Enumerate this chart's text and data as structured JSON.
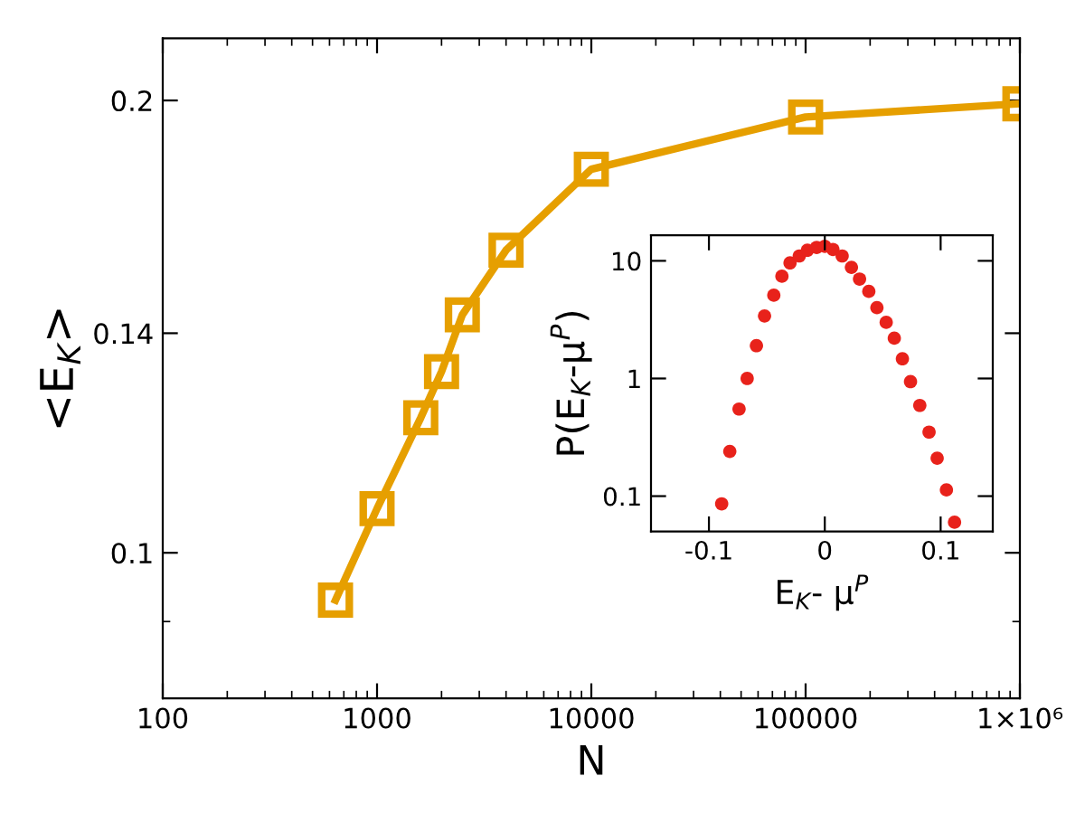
{
  "chart_data": [
    {
      "type": "line",
      "xlabel": "N",
      "ylabel": "<E$_{K}$>",
      "log": "xy",
      "marker": "square",
      "line_style": "solid",
      "grid": false,
      "legend": false,
      "x": [
        640,
        1000,
        1600,
        2000,
        2500,
        4000,
        10000,
        100000,
        1000000
      ],
      "series": [
        {
          "color": "#e69f00",
          "values": [
            0.093,
            0.107,
            0.123,
            0.132,
            0.144,
            0.159,
            0.18,
            0.195,
            0.199
          ]
        }
      ],
      "xlim": [
        100,
        1000000
      ],
      "xticks": [
        100,
        1000,
        10000,
        100000,
        {
          "value": 1000000,
          "label": "1×10⁶"
        }
      ],
      "ylim": [
        0.08,
        0.22
      ],
      "yticks": [
        0.1,
        0.14,
        0.2
      ]
    },
    {
      "type": "scatter",
      "xlabel": "E$_{K}$- μ$^{P}$",
      "ylabel": "P(E$_{K}$-μ$^{P}$)",
      "log": "y",
      "marker": "circle",
      "grid": false,
      "legend": false,
      "x": [
        -0.089,
        -0.082,
        -0.074,
        -0.067,
        -0.059,
        -0.052,
        -0.044,
        -0.037,
        -0.03,
        -0.022,
        -0.015,
        -0.007,
        0.0,
        0.007,
        0.015,
        0.023,
        0.03,
        0.038,
        0.045,
        0.053,
        0.06,
        0.067,
        0.074,
        0.082,
        0.09,
        0.097,
        0.105,
        0.112
      ],
      "series": [
        {
          "color": "#e8221b",
          "values": [
            0.086,
            0.24,
            0.55,
            1.0,
            1.9,
            3.4,
            5.1,
            7.4,
            9.6,
            11.0,
            12.3,
            13.0,
            13.3,
            12.5,
            11.0,
            8.8,
            7.0,
            5.5,
            4.0,
            3.0,
            2.2,
            1.47,
            0.94,
            0.59,
            0.35,
            0.21,
            0.113,
            0.06
          ]
        }
      ],
      "xlim": [
        -0.15,
        0.145
      ],
      "xticks": [
        -0.1,
        0,
        0.1
      ],
      "ylim": [
        0.05,
        16.5
      ],
      "yticks": [
        0.1,
        1,
        10
      ]
    }
  ]
}
